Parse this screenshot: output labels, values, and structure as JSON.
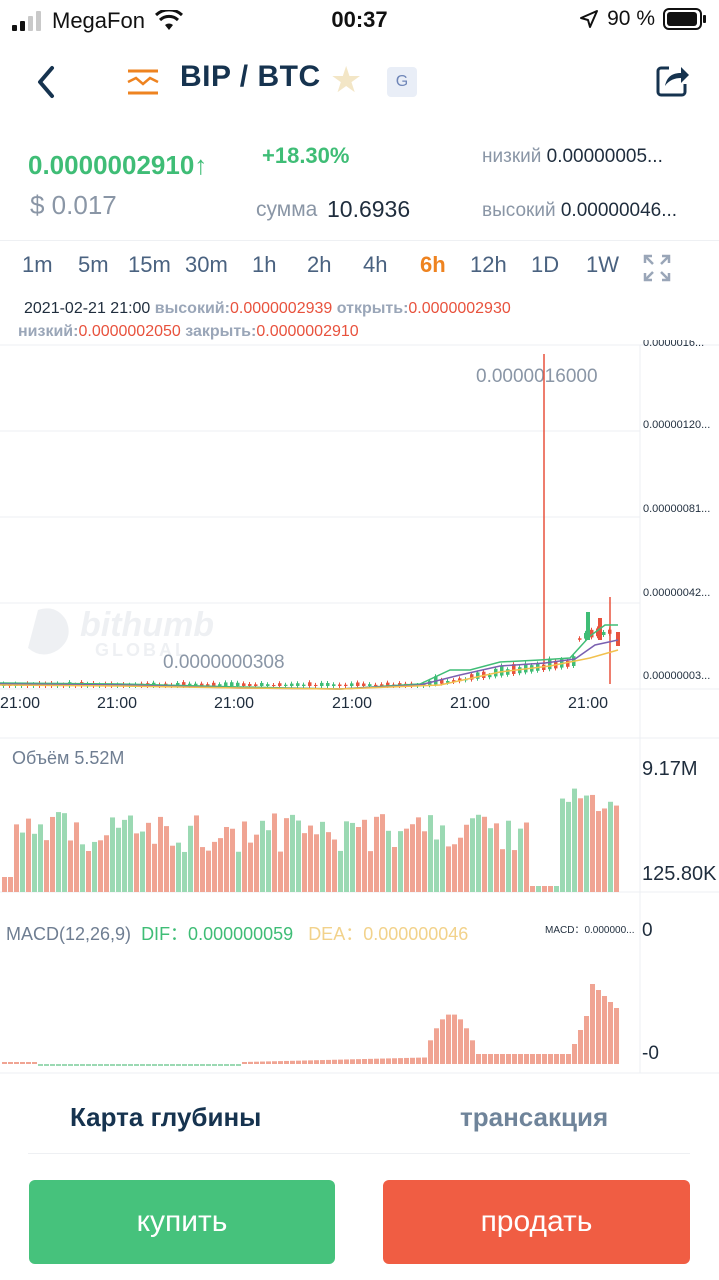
{
  "status_bar": {
    "carrier": "MegaFon",
    "time": "00:37",
    "battery": "90 %"
  },
  "header": {
    "pair": "BIP / BTC",
    "badge": "G"
  },
  "ticker": {
    "price": "0.0000002910",
    "price_arrow": "↑",
    "usd": "$ 0.017",
    "change": "+18.30%",
    "sum_label": "сумма",
    "sum_value": "10.6936",
    "low_label": "низкий",
    "low_value": "0.00000005...",
    "high_label": "высокий",
    "high_value": "0.00000046..."
  },
  "intervals": [
    "1m",
    "5m",
    "15m",
    "30m",
    "1h",
    "2h",
    "4h",
    "6h",
    "12h",
    "1D",
    "1W"
  ],
  "active_interval": "6h",
  "ohlc": {
    "date": "2021-02-21 21:00",
    "high_label": "высокий:",
    "high_value": "0.0000002939",
    "open_label": "открыть:",
    "open_value": "0.0000002930",
    "low_label": "низкий:",
    "low_value": "0.0000002050",
    "close_label": "закрыть:",
    "close_value": "0.0000002910"
  },
  "chart": {
    "y_axis_labels": [
      "0.0000016...",
      "0.00000120...",
      "0.00000081...",
      "0.00000042...",
      "0.00000003..."
    ],
    "max_marker": "0.0000016000",
    "min_marker": "0.0000000308",
    "time_labels": [
      "21:00",
      "21:00",
      "21:00",
      "21:00",
      "21:00",
      "21:00"
    ],
    "watermark": "bithumb",
    "watermark_sub": "GLOBAL"
  },
  "volume": {
    "label": "Объём 5.52M",
    "max": "9.17M",
    "min": "125.80K"
  },
  "macd": {
    "label": "MACD(12,26,9)",
    "dif": "DIF：0.000000059",
    "dea": "DEA：0.000000046",
    "macd_value": "MACD：0.000000...",
    "zero": "0",
    "neg": "-0"
  },
  "tabs": {
    "depth": "Карта глубины",
    "transactions": "трансакция"
  },
  "buttons": {
    "buy": "купить",
    "sell": "продать"
  },
  "colors": {
    "up": "#3fbd76",
    "down": "#e8523d",
    "accent": "#ee8320",
    "buy": "#46c27c",
    "sell": "#f05d43"
  }
}
